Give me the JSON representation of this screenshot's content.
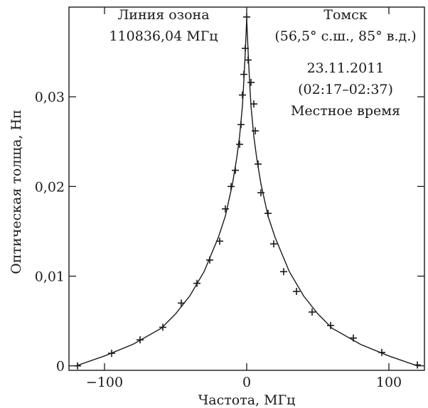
{
  "chart_data": {
    "type": "scatter",
    "xlabel": "Частота, МГц",
    "ylabel": "Оптическая толща, Нп",
    "xlim": [
      -125,
      125
    ],
    "ylim": [
      -0.0005,
      0.04
    ],
    "x_ticks": [
      {
        "value": -100,
        "label": "−100"
      },
      {
        "value": 0,
        "label": "0"
      },
      {
        "value": 100,
        "label": "100"
      }
    ],
    "y_ticks": [
      {
        "value": 0,
        "label": "0"
      },
      {
        "value": 0.01,
        "label": "0,01"
      },
      {
        "value": 0.02,
        "label": "0,02"
      },
      {
        "value": 0.03,
        "label": "0,03"
      }
    ],
    "grid": false,
    "annotations": {
      "line_title": "Линия озона",
      "line_freq": "110836,04 МГц",
      "site": "Томск",
      "coords": "(56,5° с.ш., 85° в.д.)",
      "date": "23.11.2011",
      "time_range": "(02:17–02:37)",
      "time_note": "Местное время"
    },
    "series": [
      {
        "style": "markers",
        "points": [
          {
            "x": -119,
            "y": 0.0
          },
          {
            "x": -95,
            "y": 0.0014
          },
          {
            "x": -75,
            "y": 0.0029
          },
          {
            "x": -59,
            "y": 0.0043
          },
          {
            "x": -46,
            "y": 0.007
          },
          {
            "x": -35,
            "y": 0.0092
          },
          {
            "x": -26,
            "y": 0.0118
          },
          {
            "x": -19,
            "y": 0.0139
          },
          {
            "x": -15,
            "y": 0.0175
          },
          {
            "x": -11,
            "y": 0.02
          },
          {
            "x": -8,
            "y": 0.0218
          },
          {
            "x": -5,
            "y": 0.0247
          },
          {
            "x": -4,
            "y": 0.0269
          },
          {
            "x": -3,
            "y": 0.0302
          },
          {
            "x": -2,
            "y": 0.0325
          },
          {
            "x": -1,
            "y": 0.0354
          },
          {
            "x": 0,
            "y": 0.0389
          },
          {
            "x": 1,
            "y": 0.0341
          },
          {
            "x": 3,
            "y": 0.0316
          },
          {
            "x": 5,
            "y": 0.0292
          },
          {
            "x": 6,
            "y": 0.0262
          },
          {
            "x": 8,
            "y": 0.0225
          },
          {
            "x": 10,
            "y": 0.0193
          },
          {
            "x": 15,
            "y": 0.017
          },
          {
            "x": 19,
            "y": 0.0136
          },
          {
            "x": 26,
            "y": 0.0105
          },
          {
            "x": 35,
            "y": 0.0083
          },
          {
            "x": 46,
            "y": 0.006
          },
          {
            "x": 59,
            "y": 0.0045
          },
          {
            "x": 75,
            "y": 0.0031
          },
          {
            "x": 95,
            "y": 0.0015
          },
          {
            "x": 120,
            "y": 0.0001
          }
        ]
      },
      {
        "style": "line",
        "points": [
          {
            "x": -120,
            "y": 0.0
          },
          {
            "x": -100,
            "y": 0.0011
          },
          {
            "x": -80,
            "y": 0.0024
          },
          {
            "x": -60,
            "y": 0.0042
          },
          {
            "x": -50,
            "y": 0.0058
          },
          {
            "x": -40,
            "y": 0.0078
          },
          {
            "x": -30,
            "y": 0.0105
          },
          {
            "x": -20,
            "y": 0.0143
          },
          {
            "x": -15,
            "y": 0.0167
          },
          {
            "x": -10,
            "y": 0.0203
          },
          {
            "x": -7,
            "y": 0.0232
          },
          {
            "x": -5,
            "y": 0.0256
          },
          {
            "x": -3,
            "y": 0.029
          },
          {
            "x": -2,
            "y": 0.0318
          },
          {
            "x": -1,
            "y": 0.035
          },
          {
            "x": 0,
            "y": 0.0387
          },
          {
            "x": 1,
            "y": 0.035
          },
          {
            "x": 2,
            "y": 0.0318
          },
          {
            "x": 3,
            "y": 0.029
          },
          {
            "x": 5,
            "y": 0.0256
          },
          {
            "x": 7,
            "y": 0.0232
          },
          {
            "x": 10,
            "y": 0.0203
          },
          {
            "x": 15,
            "y": 0.0167
          },
          {
            "x": 20,
            "y": 0.0143
          },
          {
            "x": 30,
            "y": 0.0105
          },
          {
            "x": 40,
            "y": 0.0078
          },
          {
            "x": 50,
            "y": 0.0058
          },
          {
            "x": 60,
            "y": 0.0042
          },
          {
            "x": 80,
            "y": 0.0024
          },
          {
            "x": 100,
            "y": 0.0011
          },
          {
            "x": 120,
            "y": 0.0
          }
        ]
      }
    ]
  }
}
